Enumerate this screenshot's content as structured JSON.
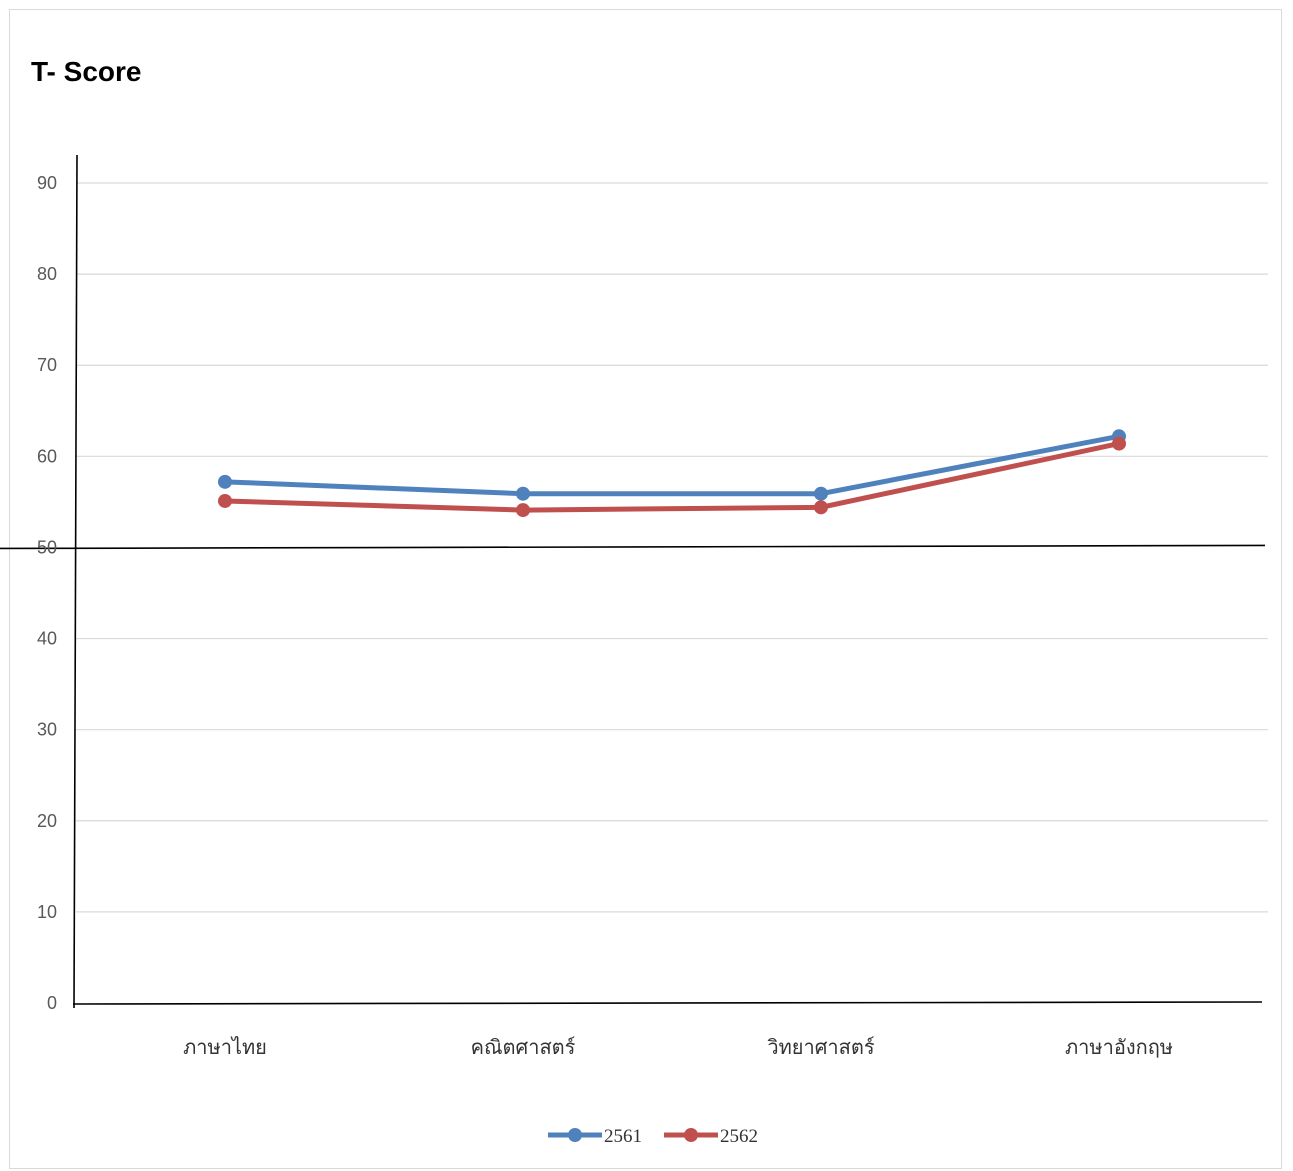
{
  "chart_data": {
    "type": "line",
    "title": "T- Score",
    "categories": [
      "ภาษาไทย",
      "คณิตศาสตร์",
      "วิทยาศาสตร์",
      "ภาษาอังกฤษ"
    ],
    "series": [
      {
        "name": "2561",
        "values": [
          57.2,
          55.9,
          55.9,
          62.2
        ],
        "color": "#4f81bd"
      },
      {
        "name": "2562",
        "values": [
          55.1,
          54.1,
          54.4,
          61.4
        ],
        "color": "#c0504d"
      }
    ],
    "ylim": [
      0,
      90
    ],
    "yticks": [
      0,
      10,
      20,
      30,
      40,
      50,
      60,
      70,
      80,
      90
    ],
    "reference_line": 50,
    "grid": true,
    "legend": "bottom",
    "xlabel": "",
    "ylabel": ""
  }
}
